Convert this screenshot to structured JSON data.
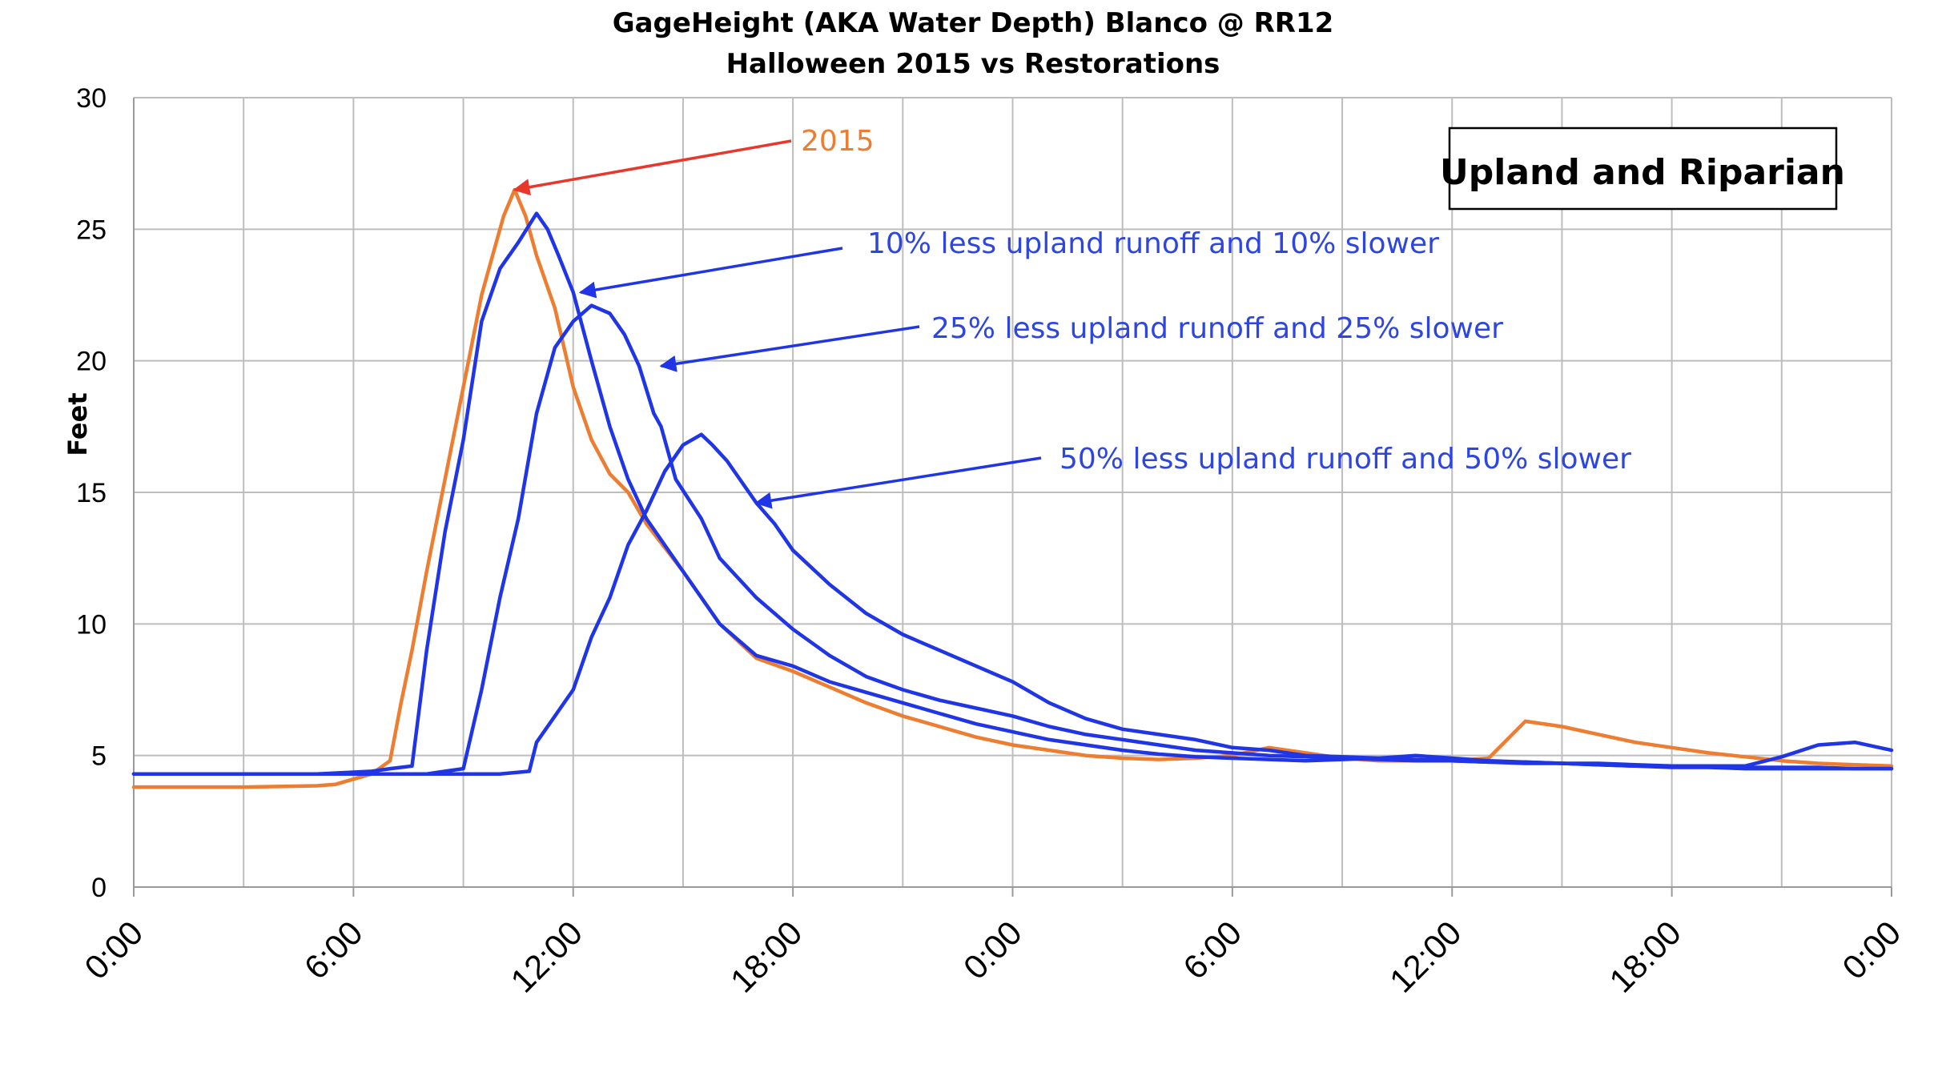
{
  "chart_data": {
    "type": "line",
    "title": "GageHeight (AKA Water Depth) Blanco @ RR12",
    "subtitle": "Halloween 2015 vs Restorations",
    "ylabel": "Feet",
    "xlabel": "",
    "ylim": [
      0,
      30
    ],
    "yticks": [
      "0",
      "5",
      "10",
      "15",
      "20",
      "25",
      "30"
    ],
    "xlim": [
      0,
      48
    ],
    "xticks": [
      "0:00",
      "6:00",
      "12:00",
      "18:00",
      "0:00",
      "6:00",
      "12:00",
      "18:00",
      "0:00"
    ],
    "grid": true,
    "legend": "none",
    "box_label": "Upland and Riparian",
    "colors": {
      "orange": "#ED7D31",
      "blue": "#1F35E6",
      "arrow_red": "#E8382C",
      "grid": "#BDBDBD"
    },
    "annotations": [
      {
        "text": "2015",
        "color": "#ED7D31",
        "arrow_color": "#E8382C",
        "points_to": [
          10.4,
          26.5
        ]
      },
      {
        "text": "10% less upland runoff and 10% slower",
        "color": "#2E46E0",
        "arrow_color": "#1F35E6",
        "points_to": [
          12.2,
          22.6
        ]
      },
      {
        "text": "25% less upland runoff and 25% slower",
        "color": "#2E46E0",
        "arrow_color": "#1F35E6",
        "points_to": [
          14.4,
          19.8
        ]
      },
      {
        "text": "50% less upland runoff and 50% slower",
        "color": "#2E46E0",
        "arrow_color": "#1F35E6",
        "points_to": [
          17.0,
          14.6
        ]
      }
    ],
    "series": [
      {
        "color": "#ED7D31",
        "x": [
          0,
          3,
          5,
          5.5,
          6,
          6.5,
          7,
          7.3,
          7.6,
          8,
          8.5,
          9,
          9.5,
          9.8,
          10.1,
          10.4,
          10.7,
          11,
          11.5,
          12,
          12.5,
          13,
          13.5,
          14,
          15,
          16,
          17,
          18,
          19,
          20,
          21,
          22,
          23,
          24,
          25,
          26,
          27,
          28,
          29,
          30,
          31,
          32,
          33,
          34,
          35,
          36,
          37,
          38,
          39,
          40,
          41,
          42,
          43,
          44,
          45,
          46,
          47,
          48
        ],
        "y": [
          3.8,
          3.8,
          3.85,
          3.9,
          4.1,
          4.3,
          4.8,
          7,
          9,
          12,
          15.5,
          19,
          22.5,
          24,
          25.5,
          26.5,
          25.5,
          24,
          22,
          19,
          17,
          15.7,
          15,
          13.8,
          12,
          10,
          8.7,
          8.2,
          7.6,
          7,
          6.5,
          6.1,
          5.7,
          5.4,
          5.2,
          5.0,
          4.9,
          4.85,
          4.9,
          5.0,
          5.3,
          5.1,
          4.9,
          4.8,
          4.8,
          4.8,
          4.9,
          6.3,
          6.1,
          5.8,
          5.5,
          5.3,
          5.1,
          4.95,
          4.8,
          4.7,
          4.65,
          4.6
        ]
      },
      {
        "color": "#1F35E6",
        "x": [
          0,
          5,
          6.5,
          7,
          7.6,
          8,
          8.5,
          9,
          9.5,
          10,
          10.5,
          11,
          11.3,
          11.6,
          12,
          12.5,
          13,
          13.5,
          14,
          15,
          16,
          17,
          18,
          19,
          20,
          21,
          22,
          23,
          24,
          25,
          26,
          27,
          28,
          29,
          30,
          31,
          32,
          33,
          34,
          35,
          36,
          37,
          38,
          39,
          40,
          41,
          42,
          43,
          44,
          45,
          46,
          47,
          48
        ],
        "y": [
          4.3,
          4.3,
          4.4,
          4.5,
          4.6,
          9,
          13.5,
          17,
          21.5,
          23.5,
          24.5,
          25.6,
          25,
          24,
          22.6,
          20,
          17.5,
          15.5,
          14,
          12,
          10,
          8.8,
          8.4,
          7.8,
          7.4,
          7.0,
          6.6,
          6.2,
          5.9,
          5.6,
          5.4,
          5.2,
          5.05,
          4.95,
          4.9,
          4.85,
          4.8,
          4.85,
          4.9,
          5.0,
          4.9,
          4.8,
          4.75,
          4.7,
          4.65,
          4.6,
          4.55,
          4.55,
          4.5,
          4.5,
          4.5,
          4.5,
          4.5
        ]
      },
      {
        "color": "#1F35E6",
        "x": [
          0,
          8,
          8.5,
          9,
          9.5,
          10,
          10.5,
          11,
          11.5,
          12,
          12.5,
          13,
          13.4,
          13.8,
          14.2,
          14.4,
          14.8,
          15.5,
          16,
          17,
          18,
          19,
          20,
          21,
          22,
          23,
          24,
          25,
          26,
          27,
          28,
          29,
          30,
          31,
          32,
          33,
          34,
          35,
          36,
          37,
          38,
          39,
          40,
          41,
          42,
          43,
          44,
          45,
          46,
          47,
          48
        ],
        "y": [
          4.3,
          4.3,
          4.4,
          4.5,
          7.5,
          11,
          14,
          18,
          20.5,
          21.5,
          22.1,
          21.8,
          21,
          19.8,
          18,
          17.5,
          15.5,
          14,
          12.5,
          11,
          9.8,
          8.8,
          8.0,
          7.5,
          7.1,
          6.8,
          6.5,
          6.1,
          5.8,
          5.6,
          5.4,
          5.2,
          5.1,
          5.0,
          4.95,
          4.9,
          4.85,
          4.8,
          4.8,
          4.75,
          4.75,
          4.7,
          4.7,
          4.65,
          4.6,
          4.6,
          4.55,
          4.55,
          4.55,
          4.5,
          4.5
        ]
      },
      {
        "color": "#1F35E6",
        "x": [
          0,
          10,
          10.8,
          11,
          11.5,
          12,
          12.5,
          13,
          13.5,
          14,
          14.5,
          15,
          15.5,
          15.8,
          16.2,
          16.6,
          17,
          17.5,
          18,
          19,
          20,
          21,
          22,
          23,
          24,
          25,
          26,
          27,
          28,
          29,
          30,
          31,
          32,
          33,
          34,
          35,
          36,
          37,
          38,
          39,
          40,
          41,
          42,
          43,
          44,
          45,
          46,
          47,
          48
        ],
        "y": [
          4.3,
          4.3,
          4.4,
          5.5,
          6.5,
          7.5,
          9.5,
          11,
          13,
          14.3,
          15.8,
          16.8,
          17.2,
          16.8,
          16.2,
          15.4,
          14.6,
          13.8,
          12.8,
          11.5,
          10.4,
          9.6,
          9.0,
          8.4,
          7.8,
          7.0,
          6.4,
          6.0,
          5.8,
          5.6,
          5.3,
          5.2,
          5.0,
          4.95,
          4.9,
          4.85,
          4.8,
          4.75,
          4.7,
          4.7,
          4.65,
          4.6,
          4.6,
          4.6,
          4.6,
          4.95,
          5.4,
          5.5,
          5.2
        ]
      }
    ]
  }
}
